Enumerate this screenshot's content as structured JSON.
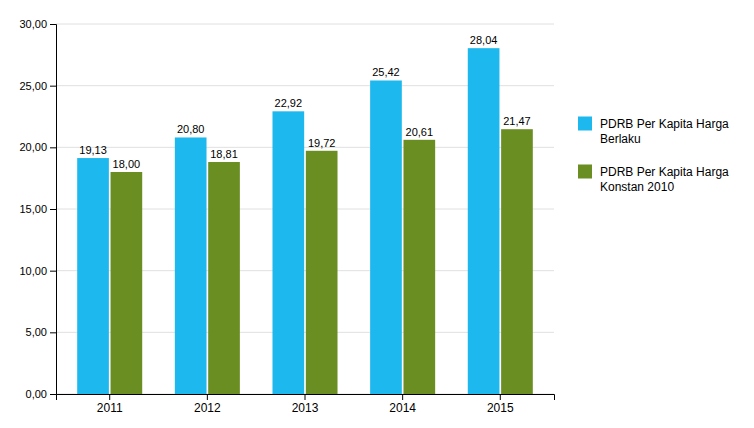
{
  "chart_data": {
    "type": "bar",
    "categories": [
      "2011",
      "2012",
      "2013",
      "2014",
      "2015"
    ],
    "series": [
      {
        "name": "PDRB Per Kapita Harga\nBerlaku",
        "color": "#1DB8ED",
        "values": [
          19.13,
          20.8,
          22.92,
          25.42,
          28.04
        ],
        "value_labels": [
          "19,13",
          "20,80",
          "22,92",
          "25,42",
          "28,04"
        ]
      },
      {
        "name": "PDRB Per Kapita Harga\nKonstan 2010",
        "color": "#6B8E23",
        "values": [
          18.0,
          18.81,
          19.72,
          20.61,
          21.47
        ],
        "value_labels": [
          "18,00",
          "18,81",
          "19,72",
          "20,61",
          "21,47"
        ]
      }
    ],
    "ylim": [
      0,
      30
    ],
    "yticks": [
      {
        "value": 0,
        "label": "0,00"
      },
      {
        "value": 5,
        "label": "5,00"
      },
      {
        "value": 10,
        "label": "10,00"
      },
      {
        "value": 15,
        "label": "15,00"
      },
      {
        "value": 20,
        "label": "20,00"
      },
      {
        "value": 25,
        "label": "25,00"
      },
      {
        "value": 30,
        "label": "30,00"
      }
    ],
    "grid": true,
    "legend": "right",
    "data_labels": true
  }
}
